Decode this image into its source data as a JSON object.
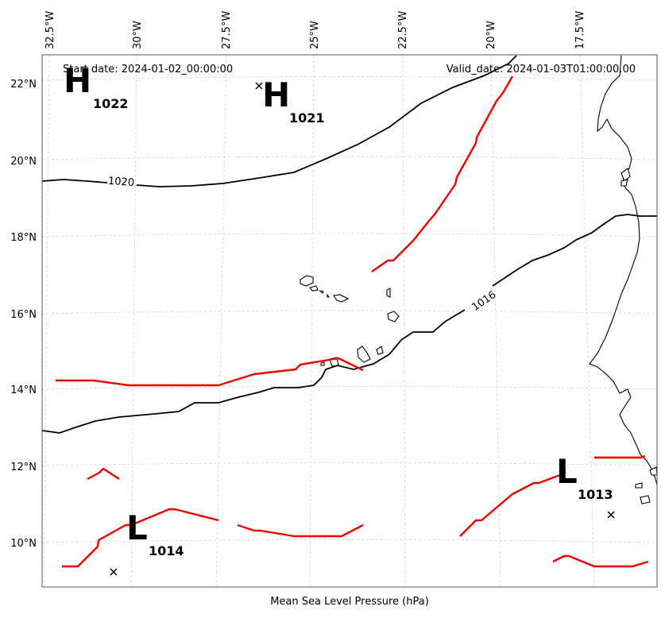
{
  "map": {
    "start_date": "Start date: 2024-01-02_00:00:00",
    "valid_date": "Valid_date: 2024-01-03T01:00:00.00",
    "xlabel": "Mean Sea Level Pressure (hPa)",
    "lon_labels": [
      "32.5°W",
      "30°W",
      "27.5°W",
      "25°W",
      "22.5°W",
      "20°W",
      "17.5°W"
    ],
    "lat_labels": [
      "22°N",
      "20°N",
      "18°N",
      "16°N",
      "14°N",
      "12°N",
      "10°N"
    ],
    "pressure_centers": [
      {
        "kind": "H",
        "value": "1022"
      },
      {
        "kind": "H",
        "value": "1021"
      },
      {
        "kind": "L",
        "value": "1014"
      },
      {
        "kind": "L",
        "value": "1013"
      }
    ],
    "contour_labels": [
      "1020",
      "1016"
    ],
    "colors": {
      "isobar": "#000000",
      "front": "#ee0000",
      "grid": "#cccccc"
    }
  }
}
